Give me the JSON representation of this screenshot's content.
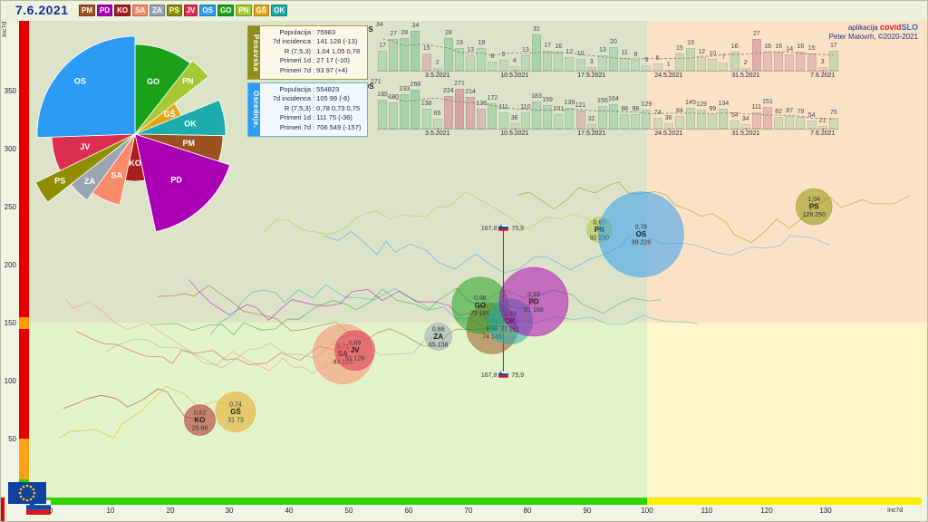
{
  "app": {
    "date": "7.6.2021",
    "credit": {
      "pre": "aplikacija",
      "brand_red": "covid",
      "brand_blue": "SLO",
      "line2": "Peter Malovrh, ©2020-2021"
    }
  },
  "regions": {
    "PM": "#9c5220",
    "PD": "#aa00b4",
    "KO": "#aa1d1d",
    "SA": "#f98b6b",
    "ZA": "#9aa5b1",
    "PS": "#8e8e00",
    "JV": "#dc2e50",
    "OS": "#2b9bf4",
    "GO": "#1ba01b",
    "PN": "#a6c832",
    "GŠ": "#e2a617",
    "OK": "#1cacac"
  },
  "legend_order": [
    "PM",
    "PD",
    "KO",
    "SA",
    "ZA",
    "PS",
    "JV",
    "OS",
    "GO",
    "PN",
    "GŠ",
    "OK"
  ],
  "info_boxes": [
    {
      "name": "Posavska",
      "accent": "#8e8e18",
      "rows": [
        [
          "Populacija",
          "75983"
        ],
        [
          "7d incidenca",
          "141 128 (-13)"
        ],
        [
          "R (7,5,3)",
          "1,04 1,05 0,78"
        ],
        [
          "Primeri 1d",
          "27 17 (-10)"
        ],
        [
          "Primeri 7d",
          "93 97 (+4)"
        ]
      ]
    },
    {
      "name": "Osrednje.",
      "accent": "#2e9df0",
      "rows": [
        [
          "Populacija",
          "554823"
        ],
        [
          "7d incidenca",
          "105 99 (-6)"
        ],
        [
          "R (7,5,3)",
          "0,78 0,73 0,75"
        ],
        [
          "Primeri 1d",
          "111 75 (-36)"
        ],
        [
          "Primeri 7d",
          "706 549 (-157)"
        ]
      ]
    }
  ],
  "chart_data": [
    {
      "type": "pie",
      "name": "regional-rose",
      "slices": [
        {
          "label": "GO",
          "a0": 0,
          "a1": 38,
          "r": 99
        },
        {
          "label": "PN",
          "a0": 38,
          "a1": 52,
          "r": 103
        },
        {
          "label": "GŠ",
          "a0": 52,
          "a1": 68,
          "r": 55
        },
        {
          "label": "OK",
          "a0": 68,
          "a1": 91,
          "r": 100
        },
        {
          "label": "PM",
          "a0": 91,
          "a1": 108,
          "r": 97
        },
        {
          "label": "PD",
          "a0": 108,
          "a1": 168,
          "r": 110
        },
        {
          "label": "KO",
          "a0": 168,
          "a1": 192,
          "r": 52
        },
        {
          "label": "SA",
          "a0": 192,
          "a1": 216,
          "r": 80
        },
        {
          "label": "ZA",
          "a0": 216,
          "a1": 232,
          "r": 90
        },
        {
          "label": "PS",
          "a0": 232,
          "a1": 244,
          "r": 122
        },
        {
          "label": "JV",
          "a0": 244,
          "a1": 268,
          "r": 92
        },
        {
          "label": "OS",
          "a0": 268,
          "a1": 360,
          "r": 108
        }
      ]
    },
    {
      "type": "bar",
      "region_label": "PS",
      "axis_max": "34",
      "values": [
        17,
        27,
        28,
        34,
        15,
        2,
        28,
        19,
        13,
        19,
        8,
        9,
        4,
        13,
        31,
        17,
        16,
        12,
        10,
        3,
        13,
        20,
        11,
        9,
        5,
        6,
        1,
        15,
        19,
        12,
        10,
        7,
        16,
        2,
        27,
        16,
        16,
        14,
        16,
        15,
        3,
        17
      ],
      "pink": [
        4,
        19,
        34,
        35,
        36,
        37,
        38,
        39,
        40
      ],
      "date_ticks": [
        {
          "i": 5,
          "label": "3.5.2021"
        },
        {
          "i": 12,
          "label": "10.5.2021"
        },
        {
          "i": 19,
          "label": "17.5.2021"
        },
        {
          "i": 26,
          "label": "24.5.2021"
        },
        {
          "i": 33,
          "label": "31.5.2021"
        },
        {
          "i": 40,
          "label": "7.6.2021"
        }
      ]
    },
    {
      "type": "bar",
      "region_label": "OS",
      "axis_max": "271",
      "values": [
        195,
        180,
        233,
        268,
        138,
        65,
        224,
        271,
        214,
        136,
        172,
        111,
        36,
        110,
        183,
        159,
        101,
        139,
        121,
        32,
        155,
        164,
        98,
        98,
        129,
        74,
        36,
        84,
        145,
        129,
        99,
        134,
        54,
        34,
        111,
        151,
        82,
        87,
        79,
        54,
        21,
        75
      ],
      "pink": [
        6,
        7,
        8,
        9,
        18,
        19,
        34,
        35
      ],
      "date_ticks": [
        {
          "i": 5,
          "label": "3.5.2021"
        },
        {
          "i": 12,
          "label": "10.5.2021"
        },
        {
          "i": 19,
          "label": "17.5.2021"
        },
        {
          "i": 26,
          "label": "24.5.2021"
        },
        {
          "i": 33,
          "label": "31.5.2021"
        },
        {
          "i": 40,
          "label": "7.6.2021"
        }
      ]
    },
    {
      "type": "scatter",
      "xlabel": "Inc7d",
      "ylabel": "Inc7d",
      "x_ticks": [
        0,
        10,
        20,
        30,
        40,
        50,
        60,
        70,
        80,
        90,
        100,
        110,
        120,
        130
      ],
      "y_ticks": [
        0,
        50,
        100,
        150,
        200,
        250,
        300,
        350
      ],
      "bubbles": [
        {
          "code": "KO",
          "R": "0,62",
          "xy": "25 66",
          "x": 25,
          "y": 66,
          "pr": 17
        },
        {
          "code": "GŠ",
          "R": "0,74",
          "xy": "31 73",
          "x": 31,
          "y": 73,
          "pr": 22
        },
        {
          "code": "SA",
          "R": "0,71",
          "xy": "49 123",
          "x": 49,
          "y": 123,
          "pr": 33
        },
        {
          "code": "JV",
          "R": "0,69",
          "xy": "51 126",
          "x": 51,
          "y": 126,
          "pr": 22
        },
        {
          "code": "ZA",
          "R": "0,88",
          "xy": "65 138",
          "x": 65,
          "y": 138,
          "pr": 15
        },
        {
          "code": "PM",
          "R": "1,01",
          "xy": "74 145",
          "x": 74,
          "y": 145,
          "pr": 28
        },
        {
          "code": "GO",
          "R": "0,86",
          "xy": "72 165",
          "x": 72,
          "y": 165,
          "pr": 31
        },
        {
          "code": "OK",
          "R": "1,03",
          "xy": "77 151",
          "x": 77,
          "y": 151,
          "pr": 25
        },
        {
          "code": "PD",
          "R": "0,93",
          "xy": "81 168",
          "x": 81,
          "y": 168,
          "pr": 38
        },
        {
          "code": "PN",
          "R": "0,67",
          "xy": "92 230",
          "x": 92,
          "y": 230,
          "pr": 14
        },
        {
          "code": "OS",
          "R": "0,78",
          "xy": "99 226",
          "x": 99,
          "y": 226,
          "pr": 47
        },
        {
          "code": "PS",
          "R": "1,04",
          "xy": "128 250",
          "x": 128,
          "y": 250,
          "pr": 20
        }
      ],
      "national": {
        "x": 75.9,
        "y": 167.8,
        "x_label": "75,9",
        "y_label": "167,8"
      }
    }
  ],
  "axes": {
    "xlabel": "Inc7d",
    "ylabel": "Inc7d"
  }
}
